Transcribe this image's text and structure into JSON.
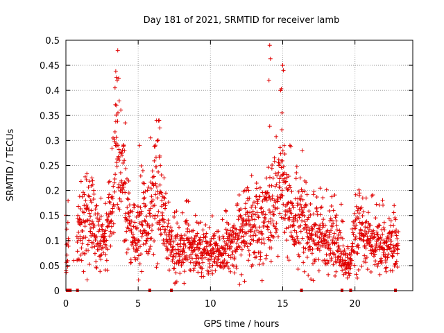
{
  "chart_data": {
    "type": "scatter",
    "title": "Day 181 of 2021, SRMTID for receiver lamb",
    "xlabel": "GPS time / hours",
    "ylabel": "SRMTID / TECUs",
    "xlim": [
      0,
      24
    ],
    "ylim": [
      0,
      0.5
    ],
    "x_ticks": [
      0,
      5,
      10,
      15,
      20
    ],
    "x_tick_labels": [
      "0",
      "5",
      "10",
      "15",
      "20"
    ],
    "y_ticks": [
      0,
      0.05,
      0.1,
      0.15,
      0.2,
      0.25,
      0.3,
      0.35,
      0.4,
      0.45,
      0.5
    ],
    "y_tick_labels": [
      "0",
      "0.05",
      "0.1",
      "0.15",
      "0.2",
      "0.25",
      "0.3",
      "0.35",
      "0.4",
      "0.45",
      "0.5"
    ],
    "grid": true,
    "marker": "+",
    "color": "#e00000",
    "series": [
      {
        "name": "SRMTID",
        "profile": [
          [
            0.0,
            0.09
          ],
          [
            0.5,
            0.07
          ],
          [
            1.0,
            0.13
          ],
          [
            1.5,
            0.15
          ],
          [
            2.0,
            0.12
          ],
          [
            2.5,
            0.11
          ],
          [
            3.0,
            0.12
          ],
          [
            3.3,
            0.2
          ],
          [
            3.5,
            0.3
          ],
          [
            3.8,
            0.23
          ],
          [
            4.2,
            0.15
          ],
          [
            4.6,
            0.1
          ],
          [
            5.0,
            0.11
          ],
          [
            5.3,
            0.16
          ],
          [
            5.7,
            0.12
          ],
          [
            6.0,
            0.16
          ],
          [
            6.3,
            0.24
          ],
          [
            6.6,
            0.17
          ],
          [
            7.0,
            0.11
          ],
          [
            7.5,
            0.085
          ],
          [
            8.0,
            0.08
          ],
          [
            8.5,
            0.09
          ],
          [
            9.0,
            0.09
          ],
          [
            9.5,
            0.085
          ],
          [
            10.0,
            0.075
          ],
          [
            10.5,
            0.07
          ],
          [
            11.0,
            0.08
          ],
          [
            11.5,
            0.09
          ],
          [
            12.0,
            0.11
          ],
          [
            12.5,
            0.12
          ],
          [
            13.0,
            0.13
          ],
          [
            13.5,
            0.13
          ],
          [
            14.0,
            0.15
          ],
          [
            14.5,
            0.19
          ],
          [
            15.0,
            0.21
          ],
          [
            15.3,
            0.17
          ],
          [
            15.7,
            0.13
          ],
          [
            16.0,
            0.14
          ],
          [
            16.3,
            0.17
          ],
          [
            16.7,
            0.11
          ],
          [
            17.0,
            0.1
          ],
          [
            17.5,
            0.11
          ],
          [
            18.0,
            0.1
          ],
          [
            18.5,
            0.095
          ],
          [
            19.0,
            0.085
          ],
          [
            19.3,
            0.05
          ],
          [
            19.6,
            0.06
          ],
          [
            20.0,
            0.11
          ],
          [
            20.5,
            0.1
          ],
          [
            21.0,
            0.095
          ],
          [
            21.5,
            0.09
          ],
          [
            22.0,
            0.085
          ],
          [
            22.5,
            0.09
          ],
          [
            22.9,
            0.09
          ]
        ],
        "peaks": [
          [
            3.45,
            0.438
          ],
          [
            3.55,
            0.42
          ],
          [
            3.4,
            0.405
          ],
          [
            3.5,
            0.37
          ],
          [
            3.6,
            0.355
          ],
          [
            3.65,
            0.265
          ],
          [
            4.1,
            0.335
          ],
          [
            4.0,
            0.29
          ],
          [
            5.1,
            0.29
          ],
          [
            6.45,
            0.34
          ],
          [
            6.5,
            0.325
          ],
          [
            5.85,
            0.305
          ],
          [
            14.1,
            0.49
          ],
          [
            14.15,
            0.463
          ],
          [
            14.05,
            0.42
          ],
          [
            14.1,
            0.328
          ],
          [
            14.85,
            0.4
          ],
          [
            14.9,
            0.403
          ],
          [
            15.0,
            0.45
          ],
          [
            15.05,
            0.44
          ],
          [
            14.95,
            0.355
          ],
          [
            15.1,
            0.29
          ],
          [
            15.5,
            0.29
          ],
          [
            16.35,
            0.28
          ],
          [
            12.85,
            0.23
          ],
          [
            12.65,
            0.2
          ],
          [
            20.3,
            0.19
          ],
          [
            1.8,
            0.225
          ],
          [
            0.55,
            0.06
          ]
        ],
        "zero_values_x": [
          0.1,
          0.2,
          0.3,
          0.8,
          5.8,
          7.3,
          16.3,
          19.1,
          19.7,
          22.8
        ],
        "sample_interval_hours": 0.0125,
        "gaps": [
          [
            0.2,
            0.75
          ],
          [
            23.0,
            24.0
          ]
        ]
      }
    ]
  }
}
